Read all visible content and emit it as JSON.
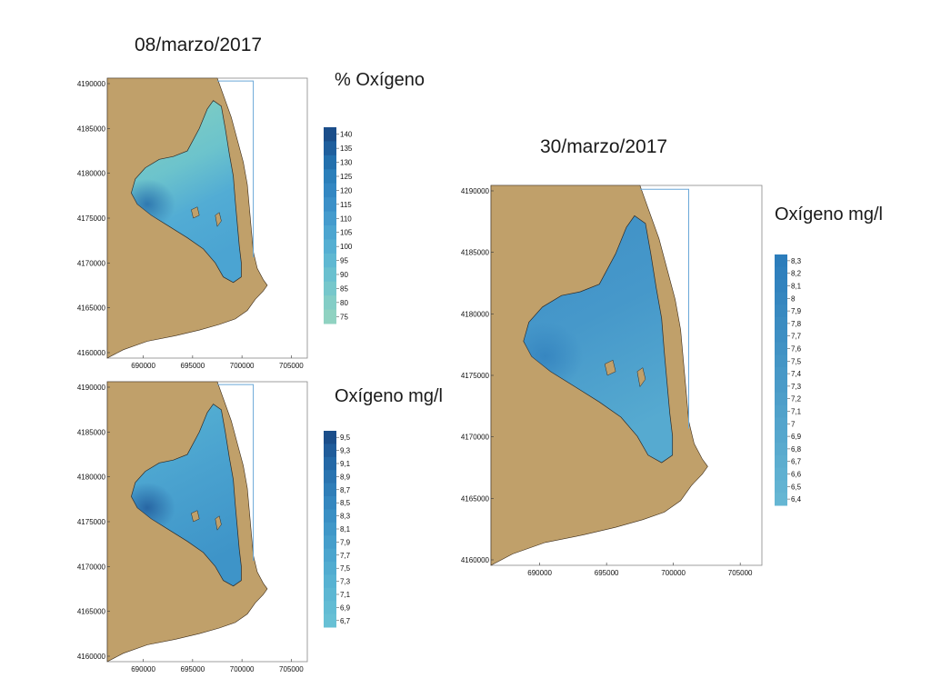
{
  "page": {
    "date_left": "08/marzo/2017",
    "date_right": "30/marzo/2017"
  },
  "colors": {
    "land": "#c0a06a",
    "coast_line": "#3a2a18",
    "sea_box": "#6aa8d8",
    "frame": "#888888"
  },
  "maps": [
    {
      "id": "top-left",
      "legend_title": "% Oxígeno",
      "x_ticks": [
        "690000",
        "695000",
        "700000",
        "705000"
      ],
      "y_ticks": [
        "4190000",
        "4185000",
        "4180000",
        "4175000",
        "4170000",
        "4165000",
        "4160000"
      ],
      "legend_values": [
        "140",
        "135",
        "130",
        "125",
        "120",
        "115",
        "110",
        "105",
        "100",
        "95",
        "90",
        "85",
        "80",
        "75"
      ],
      "legend_colors": [
        "#1b4e8a",
        "#1f5f9d",
        "#2370ad",
        "#2b7fba",
        "#3387c2",
        "#3b90c8",
        "#449bcd",
        "#4ca5d0",
        "#55afd2",
        "#5fb8d2",
        "#6ac0cf",
        "#76c7cb",
        "#83cdc6",
        "#90d2c1"
      ],
      "water_gradient": [
        {
          "offset": "0%",
          "color": "#86d1bf"
        },
        {
          "offset": "45%",
          "color": "#6cc3cc"
        },
        {
          "offset": "70%",
          "color": "#52acd4"
        },
        {
          "offset": "100%",
          "color": "#4ba4d2"
        }
      ],
      "hotspot_color": "#2a72ad"
    },
    {
      "id": "bottom-left",
      "legend_title": "Oxígeno mg/l",
      "x_ticks": [
        "690000",
        "695000",
        "700000",
        "705000"
      ],
      "y_ticks": [
        "4190000",
        "4185000",
        "4180000",
        "4175000",
        "4170000",
        "4165000",
        "4160000"
      ],
      "legend_values": [
        "9,5",
        "9,3",
        "9,1",
        "8,9",
        "8,7",
        "8,5",
        "8,3",
        "8,1",
        "7,9",
        "7,7",
        "7,5",
        "7,3",
        "7,1",
        "6,9",
        "6,7"
      ],
      "legend_colors": [
        "#1b4e8a",
        "#205c9a",
        "#2468a6",
        "#2a74b0",
        "#2f7eb8",
        "#3487bf",
        "#398fc4",
        "#3f97c8",
        "#459ecb",
        "#4ba5ce",
        "#51acd0",
        "#57b2d2",
        "#5db7d3",
        "#62bcd4",
        "#67c0d5"
      ],
      "water_gradient": [
        {
          "offset": "0%",
          "color": "#58b4d3"
        },
        {
          "offset": "50%",
          "color": "#4aa2cf"
        },
        {
          "offset": "100%",
          "color": "#3e94c8"
        }
      ],
      "hotspot_color": "#24609f"
    },
    {
      "id": "right",
      "legend_title": "Oxígeno mg/l",
      "x_ticks": [
        "690000",
        "695000",
        "700000",
        "705000"
      ],
      "y_ticks": [
        "4190000",
        "4185000",
        "4180000",
        "4175000",
        "4170000",
        "4165000",
        "4160000"
      ],
      "legend_values": [
        "8,3",
        "8,2",
        "8,1",
        "8",
        "7,9",
        "7,8",
        "7,7",
        "7,6",
        "7,5",
        "7,4",
        "7,3",
        "7,2",
        "7,1",
        "7",
        "6,9",
        "6,8",
        "6,7",
        "6,6",
        "6,5",
        "6,4"
      ],
      "legend_colors": [
        "#2c7dbb",
        "#2f80bd",
        "#3283be",
        "#3586bf",
        "#3889c0",
        "#3b8cc1",
        "#3e8fc3",
        "#4192c4",
        "#4495c5",
        "#4798c7",
        "#4a9bc8",
        "#4d9ec9",
        "#50a1ca",
        "#53a4cc",
        "#56a7cd",
        "#59aace",
        "#5cadcf",
        "#5fb0d1",
        "#62b3d2",
        "#65b6d3"
      ],
      "water_gradient": [
        {
          "offset": "0%",
          "color": "#3f90c6"
        },
        {
          "offset": "50%",
          "color": "#4698ca"
        },
        {
          "offset": "100%",
          "color": "#56aad0"
        }
      ],
      "hotspot_color": "#3584bf"
    }
  ]
}
